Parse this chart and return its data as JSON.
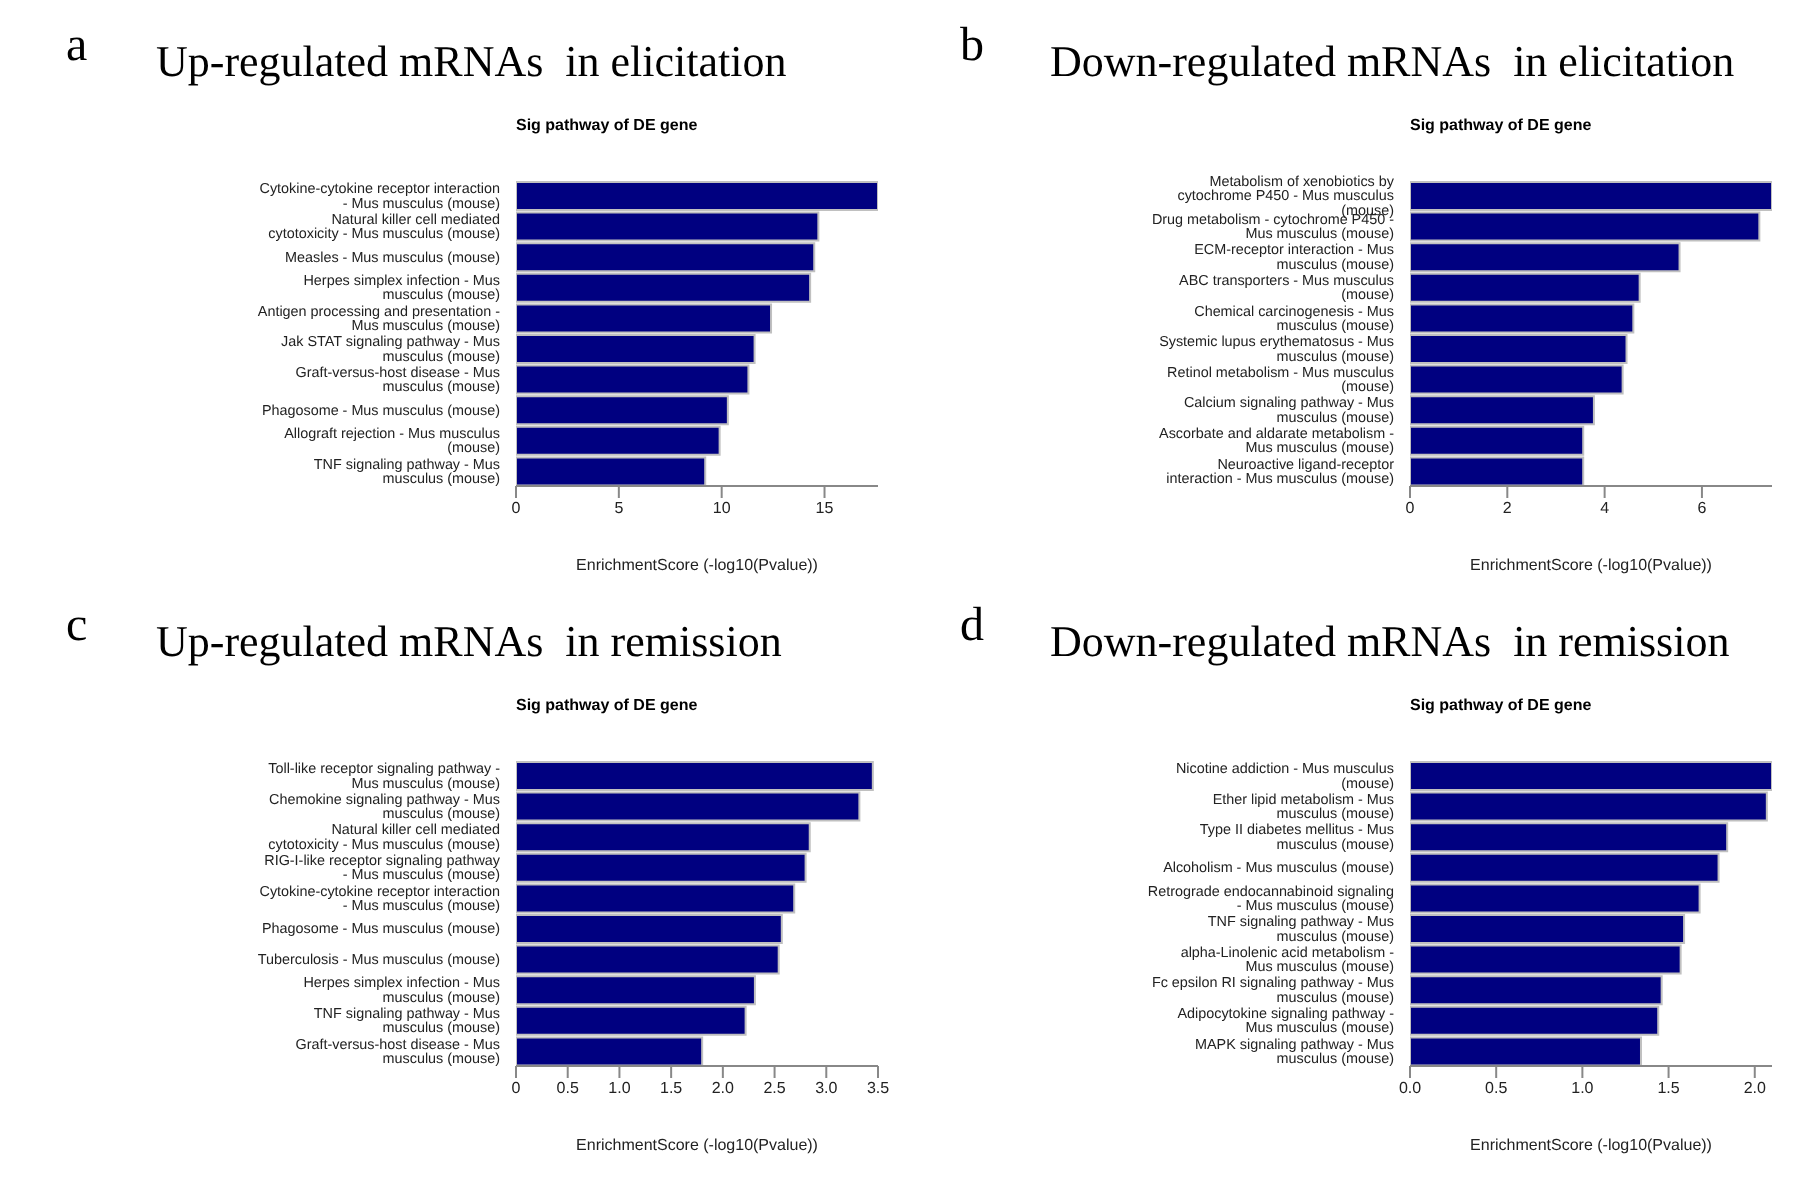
{
  "chart_data": [
    {
      "type": "bar",
      "orientation": "horizontal",
      "title": "Up-regulated mRNAs  in elicitation",
      "subtitle": "Sig pathway of DE gene",
      "xlabel": "EnrichmentScore (-log10(Pvalue))",
      "annotations": [
        "a"
      ],
      "color": "#000080",
      "legend": false,
      "grid": false,
      "categories": [
        "Cytokine-cytokine receptor interaction - Mus musculus (mouse)",
        "Natural killer cell mediated cytotoxicity - Mus musculus (mouse)",
        "Measles - Mus musculus (mouse)",
        "Herpes simplex infection - Mus musculus (mouse)",
        "Antigen processing and presentation - Mus musculus (mouse)",
        "Jak STAT signaling pathway - Mus musculus (mouse)",
        "Graft-versus-host disease - Mus musculus (mouse)",
        "Phagosome - Mus musculus (mouse)",
        "Allograft rejection - Mus musculus (mouse)",
        "TNF signaling pathway - Mus musculus (mouse)"
      ],
      "values": [
        17.6,
        14.7,
        14.5,
        14.3,
        12.4,
        11.6,
        11.3,
        10.3,
        9.9,
        9.2
      ],
      "xlim": [
        0,
        17.6
      ],
      "xticks": [
        0,
        5,
        10,
        15
      ]
    },
    {
      "type": "bar",
      "orientation": "horizontal",
      "title": "Down-regulated mRNAs  in elicitation",
      "subtitle": "Sig pathway of DE gene",
      "xlabel": "EnrichmentScore (-log10(Pvalue))",
      "annotations": [
        "b"
      ],
      "color": "#000080",
      "legend": false,
      "grid": false,
      "categories": [
        "Metabolism of xenobiotics by cytochrome P450 - Mus musculus (mouse)",
        "Drug metabolism - cytochrome P450 - Mus musculus (mouse)",
        "ECM-receptor interaction - Mus musculus (mouse)",
        "ABC transporters - Mus musculus (mouse)",
        "Chemical carcinogenesis - Mus musculus (mouse)",
        "Systemic lupus erythematosus - Mus musculus (mouse)",
        "Retinol metabolism - Mus musculus (mouse)",
        "Calcium signaling pathway - Mus musculus (mouse)",
        "Ascorbate and aldarate metabolism - Mus musculus (mouse)",
        "Neuroactive ligand-receptor interaction - Mus musculus (mouse)"
      ],
      "values": [
        7.44,
        7.18,
        5.54,
        4.72,
        4.59,
        4.45,
        4.37,
        3.78,
        3.56,
        3.56
      ],
      "xlim": [
        0,
        7.44
      ],
      "xticks": [
        0,
        2,
        4,
        6
      ]
    },
    {
      "type": "bar",
      "orientation": "horizontal",
      "title": "Up-regulated mRNAs  in remission",
      "subtitle": "Sig pathway of DE gene",
      "xlabel": "EnrichmentScore (-log10(Pvalue))",
      "annotations": [
        "c"
      ],
      "color": "#000080",
      "legend": false,
      "grid": false,
      "categories": [
        "Toll-like receptor signaling pathway - Mus musculus (mouse)",
        "Chemokine signaling pathway - Mus musculus (mouse)",
        "Natural killer cell mediated cytotoxicity - Mus musculus (mouse)",
        "RIG-I-like receptor signaling pathway - Mus musculus (mouse)",
        "Cytokine-cytokine receptor interaction - Mus musculus (mouse)",
        "Phagosome - Mus musculus (mouse)",
        "Tuberculosis - Mus musculus (mouse)",
        "Herpes simplex infection - Mus musculus (mouse)",
        "TNF signaling pathway - Mus musculus (mouse)",
        "Graft-versus-host disease - Mus musculus (mouse)"
      ],
      "values": [
        3.45,
        3.32,
        2.84,
        2.8,
        2.69,
        2.57,
        2.54,
        2.31,
        2.22,
        1.8
      ],
      "xlim": [
        0,
        3.5
      ],
      "xticks": [
        0,
        {
          "value": 0.5,
          "label": "0.5"
        },
        {
          "value": 1,
          "label": "1.0"
        },
        {
          "value": 1.5,
          "label": "1.5"
        },
        {
          "value": 2,
          "label": "2.0"
        },
        {
          "value": 2.5,
          "label": "2.5"
        },
        {
          "value": 3,
          "label": "3.0"
        },
        {
          "value": 3.5,
          "label": "3.5"
        }
      ]
    },
    {
      "type": "bar",
      "orientation": "horizontal",
      "title": "Down-regulated mRNAs  in remission",
      "subtitle": "Sig pathway of DE gene",
      "xlabel": "EnrichmentScore (-log10(Pvalue))",
      "annotations": [
        "d"
      ],
      "color": "#000080",
      "legend": false,
      "grid": false,
      "categories": [
        "Nicotine addiction - Mus musculus (mouse)",
        "Ether lipid metabolism - Mus musculus (mouse)",
        "Type II diabetes mellitus - Mus musculus (mouse)",
        "Alcoholism - Mus musculus (mouse)",
        "Retrograde endocannabinoid signaling - Mus musculus (mouse)",
        "TNF signaling pathway - Mus musculus (mouse)",
        "alpha-Linolenic acid metabolism - Mus musculus (mouse)",
        "Fc epsilon RI signaling pathway - Mus musculus (mouse)",
        "Adipocytokine signaling pathway - Mus musculus (mouse)",
        "MAPK signaling pathway - Mus musculus (mouse)"
      ],
      "values": [
        2.1,
        2.07,
        1.84,
        1.79,
        1.68,
        1.59,
        1.57,
        1.46,
        1.44,
        1.34
      ],
      "xlim": [
        0,
        2.1
      ],
      "xticks": [
        {
          "value": 0,
          "label": "0.0"
        },
        {
          "value": 0.5,
          "label": "0.5"
        },
        {
          "value": 1,
          "label": "1.0"
        },
        {
          "value": 1.5,
          "label": "1.5"
        },
        {
          "value": 2,
          "label": "2.0"
        }
      ]
    }
  ]
}
